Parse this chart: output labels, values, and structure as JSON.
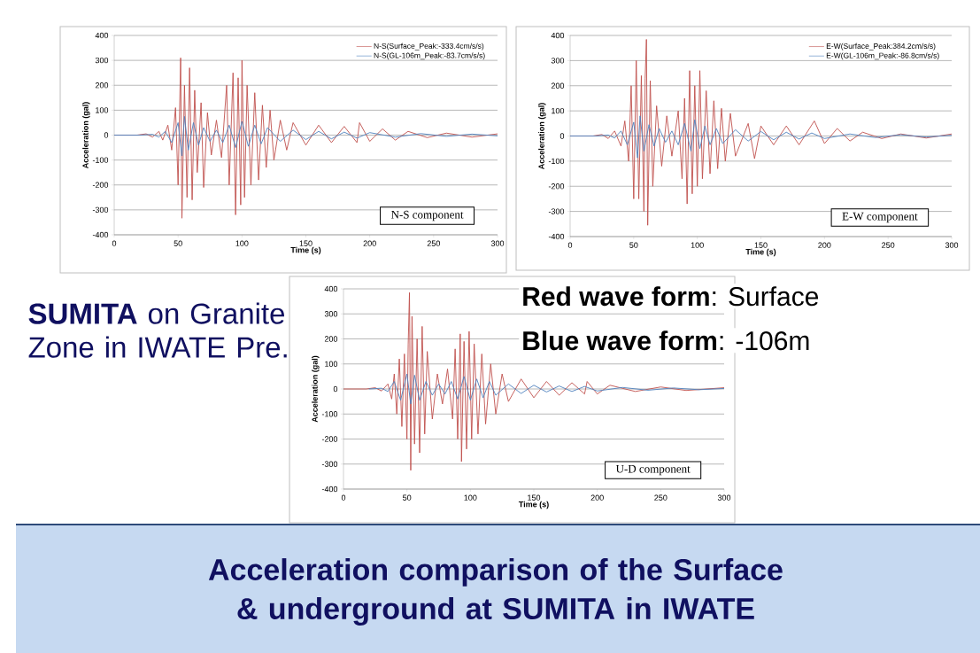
{
  "chart_data": [
    {
      "type": "line",
      "xlabel": "Time (s)",
      "ylabel": "Acceleration (gal)",
      "xlim": [
        0,
        300
      ],
      "ylim": [
        -400,
        400
      ],
      "xticks": [
        0,
        50,
        100,
        150,
        200,
        250,
        300
      ],
      "yticks": [
        -400,
        -300,
        -200,
        -100,
        0,
        100,
        200,
        300,
        400
      ],
      "grid": "y",
      "legend": "top right",
      "line_style": "solid",
      "annotations": [
        "N-S component"
      ],
      "series": [
        {
          "name": "N-S(Surface_Peak:-333.4cm/s/s)",
          "color": "#c0504d",
          "x": [
            0,
            18,
            25,
            30,
            35,
            38,
            42,
            45,
            48,
            50,
            52,
            53,
            55,
            57,
            59,
            61,
            63,
            65,
            68,
            70,
            73,
            76,
            80,
            84,
            88,
            90,
            93,
            95,
            97,
            99,
            100,
            102,
            104,
            107,
            110,
            113,
            116,
            119,
            122,
            125,
            130,
            135,
            140,
            150,
            160,
            170,
            180,
            190,
            192,
            200,
            210,
            220,
            230,
            245,
            260,
            280,
            300
          ],
          "values": [
            0,
            0,
            5,
            -8,
            15,
            -20,
            40,
            -60,
            110,
            -200,
            310,
            -333.4,
            200,
            -250,
            270,
            -260,
            180,
            -150,
            130,
            -210,
            90,
            -80,
            60,
            -90,
            200,
            -200,
            250,
            -320,
            230,
            -280,
            300,
            -250,
            200,
            -200,
            170,
            -180,
            120,
            -130,
            100,
            -100,
            60,
            -60,
            50,
            -40,
            40,
            -30,
            35,
            -30,
            50,
            -25,
            25,
            -20,
            15,
            -10,
            8,
            -8,
            5
          ]
        },
        {
          "name": "N-S(GL-106m_Peak:-83.7cm/s/s)",
          "color": "#4f81bd",
          "x": [
            0,
            20,
            30,
            35,
            40,
            45,
            50,
            53,
            55,
            58,
            62,
            66,
            70,
            75,
            80,
            85,
            90,
            95,
            100,
            105,
            110,
            115,
            120,
            130,
            140,
            150,
            160,
            170,
            180,
            190,
            200,
            220,
            240,
            260,
            280,
            300
          ],
          "values": [
            0,
            0,
            3,
            -8,
            15,
            -30,
            50,
            -83.7,
            75,
            -60,
            50,
            -40,
            30,
            -25,
            20,
            -30,
            40,
            -50,
            55,
            -45,
            40,
            -35,
            30,
            -25,
            20,
            -18,
            15,
            -15,
            12,
            -12,
            10,
            -8,
            6,
            -5,
            4,
            -3
          ]
        }
      ]
    },
    {
      "type": "line",
      "xlabel": "Time (s)",
      "ylabel": "Acceleration (gal)",
      "xlim": [
        0,
        300
      ],
      "ylim": [
        -400,
        400
      ],
      "xticks": [
        0,
        50,
        100,
        150,
        200,
        250,
        300
      ],
      "yticks": [
        -400,
        -300,
        -200,
        -100,
        0,
        100,
        200,
        300,
        400
      ],
      "grid": "y",
      "legend": "top right",
      "line_style": "solid",
      "annotations": [
        "E-W component"
      ],
      "series": [
        {
          "name": "E-W(Surface_Peak:384.2cm/s/s)",
          "color": "#c0504d",
          "x": [
            0,
            18,
            25,
            30,
            35,
            40,
            43,
            46,
            48,
            50,
            52,
            54,
            56,
            58,
            59,
            60,
            61,
            63,
            65,
            68,
            72,
            76,
            80,
            85,
            88,
            90,
            92,
            94,
            96,
            98,
            100,
            102,
            104,
            107,
            110,
            113,
            116,
            119,
            122,
            126,
            130,
            140,
            145,
            150,
            160,
            170,
            180,
            192,
            200,
            210,
            220,
            230,
            245,
            260,
            280,
            300
          ],
          "values": [
            0,
            0,
            6,
            -10,
            20,
            -40,
            60,
            -100,
            200,
            -250,
            300,
            -250,
            240,
            -300,
            230,
            384.2,
            -355,
            220,
            -200,
            120,
            -120,
            80,
            -80,
            100,
            -170,
            150,
            -270,
            260,
            -230,
            200,
            -200,
            260,
            -170,
            180,
            -150,
            140,
            -130,
            110,
            -100,
            90,
            -80,
            50,
            -90,
            40,
            -35,
            40,
            -35,
            60,
            -30,
            30,
            -20,
            15,
            -10,
            8,
            -8,
            8
          ]
        },
        {
          "name": "E-W(GL-106m_Peak:-86.8cm/s/s)",
          "color": "#4f81bd",
          "x": [
            0,
            20,
            30,
            35,
            40,
            45,
            50,
            53,
            55,
            58,
            62,
            66,
            70,
            75,
            80,
            85,
            90,
            95,
            98,
            102,
            106,
            110,
            115,
            120,
            130,
            140,
            150,
            160,
            170,
            180,
            190,
            200,
            220,
            240,
            260,
            280,
            300
          ],
          "values": [
            0,
            0,
            4,
            -8,
            20,
            -35,
            55,
            -86.8,
            80,
            -60,
            45,
            -40,
            30,
            -25,
            20,
            -35,
            50,
            -60,
            65,
            -50,
            40,
            -35,
            30,
            -30,
            25,
            -20,
            18,
            -15,
            15,
            -12,
            12,
            -10,
            8,
            -6,
            5,
            -4,
            3
          ]
        }
      ]
    },
    {
      "type": "line",
      "xlabel": "Time (s)",
      "ylabel": "Acceleration (gal)",
      "xlim": [
        0,
        300
      ],
      "ylim": [
        -400,
        400
      ],
      "xticks": [
        0,
        50,
        100,
        150,
        200,
        250,
        300
      ],
      "yticks": [
        -400,
        -300,
        -200,
        -100,
        0,
        100,
        200,
        300,
        400
      ],
      "grid": "y",
      "line_style": "solid",
      "annotations": [
        "U-D component"
      ],
      "series": [
        {
          "color": "#c0504d",
          "x": [
            0,
            18,
            25,
            30,
            35,
            38,
            40,
            42,
            44,
            46,
            48,
            50,
            51,
            52,
            53,
            54,
            56,
            58,
            60,
            62,
            64,
            66,
            70,
            74,
            78,
            82,
            86,
            88,
            90,
            92,
            93,
            95,
            97,
            99,
            101,
            103,
            106,
            109,
            112,
            116,
            120,
            125,
            130,
            140,
            150,
            160,
            170,
            180,
            190,
            192,
            200,
            210,
            230,
            250,
            270,
            300
          ],
          "values": [
            0,
            0,
            5,
            -8,
            20,
            -40,
            60,
            -100,
            120,
            -150,
            140,
            -200,
            180,
            385,
            -325,
            290,
            -220,
            200,
            -255,
            250,
            -180,
            150,
            -120,
            60,
            -60,
            80,
            -120,
            160,
            -200,
            220,
            -290,
            190,
            -240,
            230,
            -200,
            180,
            -180,
            140,
            -140,
            100,
            -100,
            60,
            -50,
            40,
            -35,
            30,
            -25,
            25,
            -20,
            30,
            -20,
            15,
            -10,
            8,
            -6,
            5
          ]
        },
        {
          "color": "#4f81bd",
          "x": [
            20,
            30,
            35,
            40,
            45,
            50,
            53,
            56,
            60,
            65,
            70,
            75,
            80,
            85,
            90,
            95,
            100,
            105,
            110,
            115,
            120,
            130,
            140,
            150,
            160,
            170,
            180,
            190,
            200,
            220,
            240,
            260,
            280,
            300
          ],
          "values": [
            0,
            3,
            -10,
            30,
            -45,
            60,
            -60,
            55,
            -45,
            30,
            -25,
            20,
            -20,
            30,
            -40,
            50,
            -45,
            40,
            -35,
            30,
            -25,
            20,
            -18,
            15,
            -12,
            12,
            -10,
            10,
            -8,
            6,
            -5,
            4,
            -3,
            2
          ]
        }
      ]
    },
    {
      "type": "other",
      "title": "Acceleration comparison of  the Surface & underground at SUMITA in IWATE",
      "annotations": [
        "**SUMITA** on Granite Zone in IWATE Pre.",
        "**Red wave form**: Surface",
        "**Blue wave form**:  -106m"
      ]
    }
  ]
}
